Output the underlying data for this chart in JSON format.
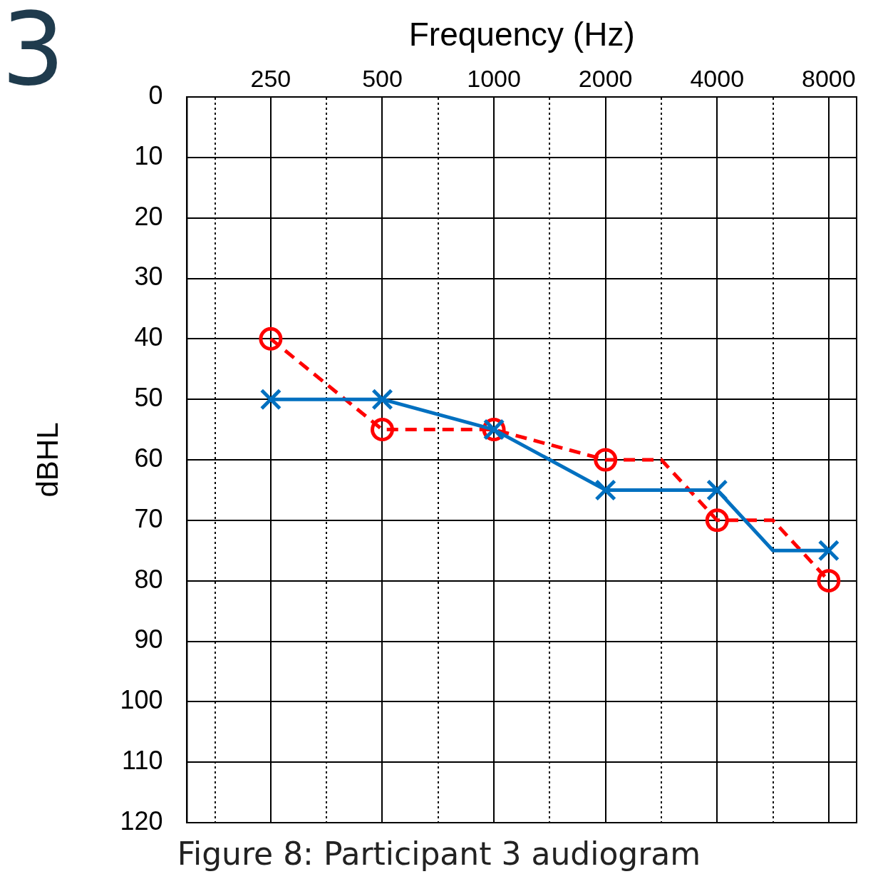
{
  "chart_data": {
    "type": "line",
    "xlabel": "Frequency (Hz)",
    "ylabel": "dBHL",
    "annotations": [
      "3",
      "Figure 8: Participant 3 audiogram"
    ],
    "categories": [
      null,
      "250",
      null,
      "500",
      null,
      "1000",
      null,
      "2000",
      null,
      "4000",
      null,
      "8000"
    ],
    "ylim": [
      120,
      0
    ],
    "yticks": [
      0,
      10,
      20,
      30,
      40,
      50,
      60,
      70,
      80,
      90,
      100,
      110,
      120
    ],
    "grid": true,
    "series": [
      {
        "color": "#0070c0",
        "marker": "cross",
        "line_style": "solid",
        "values": [
          null,
          50,
          null,
          50,
          null,
          55,
          null,
          65,
          null,
          65,
          75,
          75
        ]
      },
      {
        "color": "#ff0000",
        "marker": "circle",
        "line_style": "dashed",
        "values": [
          null,
          40,
          null,
          55,
          null,
          55,
          null,
          60,
          60,
          70,
          70,
          80
        ]
      }
    ]
  }
}
